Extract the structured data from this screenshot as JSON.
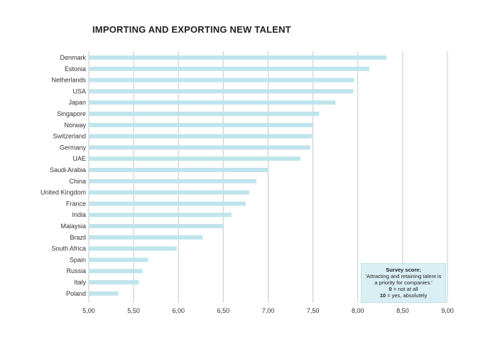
{
  "chart_data": {
    "type": "bar",
    "orientation": "horizontal",
    "title": "IMPORTING AND EXPORTING NEW TALENT",
    "categories": [
      "Denmark",
      "Estonia",
      "Netherlands",
      "USA",
      "Japan",
      "Singapore",
      "Norway",
      "Switzerland",
      "Germany",
      "UAE",
      "Saudi Arabia",
      "China",
      "United Kingdom",
      "France",
      "India",
      "Malaysia",
      "Brazil",
      "South Africa",
      "Spain",
      "Russia",
      "Italy",
      "Poland"
    ],
    "values": [
      8.32,
      8.13,
      7.96,
      7.95,
      7.75,
      7.57,
      7.5,
      7.49,
      7.47,
      7.36,
      7.0,
      6.87,
      6.79,
      6.75,
      6.59,
      6.5,
      6.27,
      5.98,
      5.66,
      5.6,
      5.56,
      5.33
    ],
    "xlim": [
      5.0,
      9.0
    ],
    "xticks": [
      "5,00",
      "5,50",
      "6,00",
      "6,50",
      "7,00",
      "7,50",
      "8,00",
      "8,50",
      "9,00"
    ],
    "xtick_values": [
      5.0,
      5.5,
      6.0,
      6.5,
      7.0,
      7.5,
      8.0,
      8.5,
      9.0
    ],
    "grid": "vertical",
    "legend_placement": "bottom-right",
    "bar_color": "#bfe4ec",
    "legend": {
      "title": "Survey score:",
      "line1": "'Attracting and retaining talent is",
      "line2": "a priority for companies.'",
      "zero_key": "0",
      "zero_text": " = not at all",
      "ten_key": "10",
      "ten_text": " = yes, absolutely"
    }
  }
}
